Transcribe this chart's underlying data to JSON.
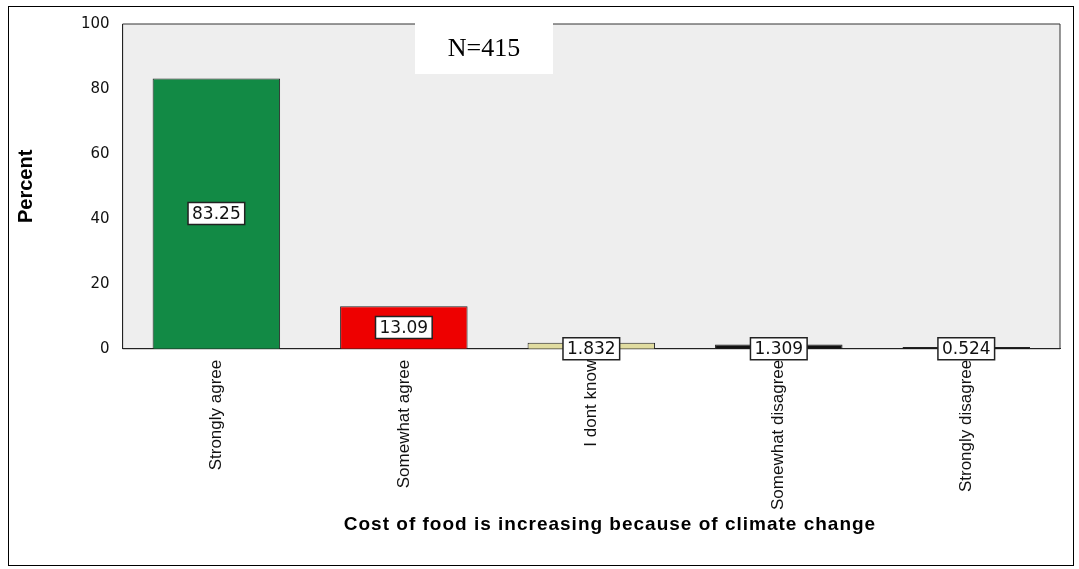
{
  "chart_data": {
    "type": "bar",
    "xlabel": "Cost of food is increasing because of climate change",
    "ylabel": "Percent",
    "categories": [
      "Strongly agree",
      "Somewhat agree",
      "I dont know",
      "Somewhat disagree",
      "Strongly disagree"
    ],
    "values": [
      83.25,
      13.09,
      1.832,
      1.309,
      0.524
    ],
    "colors": [
      "#128a45",
      "#ee0000",
      "#e0dca0",
      "#111111",
      "#111111"
    ],
    "ylim": [
      0,
      100
    ],
    "yticks": [
      0,
      20,
      40,
      60,
      80,
      100
    ],
    "grid": false,
    "legend": false,
    "data_labels": true,
    "annotations": [
      "N=415"
    ]
  }
}
